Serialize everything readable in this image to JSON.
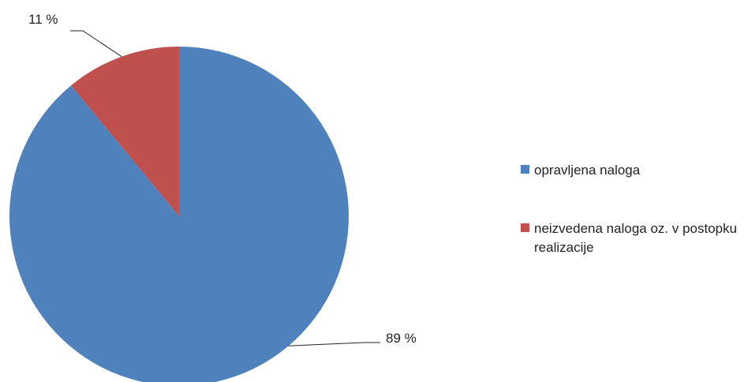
{
  "chart_data": {
    "type": "pie",
    "title": "",
    "slices": [
      {
        "label": "opravljena naloga",
        "value": 89,
        "display": "89 %",
        "color": "#4F81BD"
      },
      {
        "label": "neizvedena naloga oz. v postopku realizacije",
        "value": 11,
        "display": "11 %",
        "color": "#C0504D"
      }
    ],
    "start": "12 o'clock",
    "direction": "clockwise",
    "legend_position": "right"
  }
}
